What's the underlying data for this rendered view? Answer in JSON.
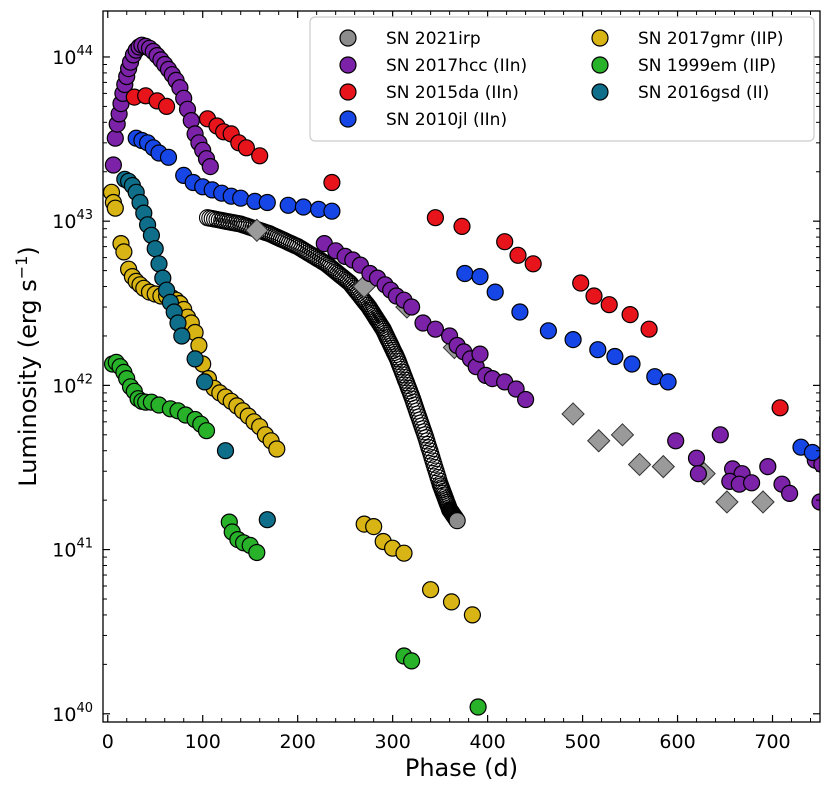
{
  "chart_data": {
    "type": "scatter",
    "xlabel": "Phase (d)",
    "ylabel": "Luminosity (erg s",
    "ylabel_sup": "−1",
    "ylabel_close": ")",
    "xlim": [
      -5,
      750
    ],
    "ylim_log10": [
      39.95,
      44.28
    ],
    "yscale": "log",
    "xticks": [
      0,
      100,
      200,
      300,
      400,
      500,
      600,
      700
    ],
    "xtick_labels": [
      "0",
      "100",
      "200",
      "300",
      "400",
      "500",
      "600",
      "700"
    ],
    "yticks_log10": [
      40,
      41,
      42,
      43,
      44
    ],
    "ytick_base": "10",
    "ytick_exponents": [
      "40",
      "41",
      "42",
      "43",
      "44"
    ],
    "legend_position": "top-right",
    "colors": {
      "irp": "#8c8c8c",
      "hcc": "#7b22a8",
      "da": "#e8141b",
      "jl": "#1646e6",
      "gmr": "#d8b414",
      "em": "#27b22a",
      "gsd": "#0f6e89",
      "diamond": "#9a9a9a"
    },
    "legend": [
      {
        "label": "SN 2021irp",
        "color_key": "irp"
      },
      {
        "label": "SN 2017hcc (IIn)",
        "color_key": "hcc"
      },
      {
        "label": "SN 2015da (IIn)",
        "color_key": "da"
      },
      {
        "label": "SN 2010jl (IIn)",
        "color_key": "jl"
      },
      {
        "label": "SN 2017gmr (IIP)",
        "color_key": "gmr"
      },
      {
        "label": "SN 1999em (IIP)",
        "color_key": "em"
      },
      {
        "label": "SN 2016gsd (II)",
        "color_key": "gsd"
      }
    ],
    "series": [
      {
        "key": "irp",
        "name": "SN 2021irp",
        "marker": "circle",
        "color_key": "irp",
        "curve": {
          "x": [
            105,
            140,
            170,
            200,
            230,
            255,
            275,
            290,
            305,
            320,
            335,
            350,
            360,
            368
          ],
          "y": [
            1.05e+43,
            9.6e+42,
            8.4e+42,
            7e+42,
            5.5e+42,
            4.2e+42,
            3e+42,
            2.2e+42,
            1.45e+42,
            8.6e+41,
            4.8e+41,
            2.5e+41,
            1.75e+41,
            1.5e+41
          ]
        }
      },
      {
        "key": "diamond",
        "name": "",
        "marker": "diamond",
        "color_key": "diamond",
        "points": [
          [
            157,
            8.8e+42
          ],
          [
            270,
            4e+42
          ],
          [
            315,
            3e+42
          ],
          [
            365,
            1.7e+42
          ],
          [
            490,
            6.7e+41
          ],
          [
            517,
            4.6e+41
          ],
          [
            542,
            5e+41
          ],
          [
            560,
            3.3e+41
          ],
          [
            585,
            3.2e+41
          ],
          [
            628,
            2.9e+41
          ],
          [
            652,
            1.95e+41
          ],
          [
            690,
            1.95e+41
          ]
        ]
      },
      {
        "key": "hcc",
        "name": "SN 2017hcc (IIn)",
        "marker": "circle",
        "color_key": "hcc",
        "points": [
          [
            6,
            2.2e+43
          ],
          [
            8,
            3.2e+43
          ],
          [
            10,
            3.9e+43
          ],
          [
            12,
            4.5e+43
          ],
          [
            14,
            5.2e+43
          ],
          [
            16,
            6e+43
          ],
          [
            18,
            6.8e+43
          ],
          [
            20,
            7.6e+43
          ],
          [
            22,
            8.5e+43
          ],
          [
            24,
            9.3e+43
          ],
          [
            27,
            1.03e+44
          ],
          [
            30,
            1.1e+44
          ],
          [
            33,
            1.15e+44
          ],
          [
            36,
            1.18e+44
          ],
          [
            40,
            1.16e+44
          ],
          [
            44,
            1.13e+44
          ],
          [
            48,
            1.08e+44
          ],
          [
            52,
            1.02e+44
          ],
          [
            56,
            9.6e+43
          ],
          [
            60,
            9e+43
          ],
          [
            64,
            8.4e+43
          ],
          [
            68,
            7.8e+43
          ],
          [
            72,
            7.2e+43
          ],
          [
            76,
            6.5e+43
          ],
          [
            80,
            5.6e+43
          ],
          [
            84,
            4.8e+43
          ],
          [
            88,
            4.1e+43
          ],
          [
            92,
            3.4e+43
          ],
          [
            96,
            3e+43
          ],
          [
            100,
            2.7e+43
          ],
          [
            104,
            2.4e+43
          ],
          [
            108,
            2.15e+43
          ],
          [
            228,
            7.3e+42
          ],
          [
            240,
            6.6e+42
          ],
          [
            250,
            6.1e+42
          ],
          [
            258,
            5.8e+42
          ],
          [
            266,
            5.4e+42
          ],
          [
            276,
            4.8e+42
          ],
          [
            284,
            4.5e+42
          ],
          [
            292,
            4.1e+42
          ],
          [
            298,
            3.8e+42
          ],
          [
            304,
            3.5e+42
          ],
          [
            312,
            3.3e+42
          ],
          [
            320,
            3e+42
          ],
          [
            332,
            2.4e+42
          ],
          [
            345,
            2.2e+42
          ],
          [
            360,
            2e+42
          ],
          [
            368,
            1.75e+42
          ],
          [
            375,
            1.6e+42
          ],
          [
            382,
            1.45e+42
          ],
          [
            388,
            1.3e+42
          ],
          [
            392,
            1.55e+42
          ],
          [
            398,
            1.15e+42
          ],
          [
            405,
            1.1e+42
          ],
          [
            418,
            1.05e+42
          ],
          [
            430,
            9.5e+41
          ],
          [
            440,
            8.2e+41
          ],
          [
            598,
            4.6e+41
          ],
          [
            620,
            3.6e+41
          ],
          [
            622,
            2.9e+41
          ],
          [
            645,
            5e+41
          ],
          [
            658,
            3.1e+41
          ],
          [
            668,
            2.9e+41
          ],
          [
            655,
            2.6e+41
          ],
          [
            665,
            2.5e+41
          ],
          [
            678,
            2.55e+41
          ],
          [
            695,
            3.2e+41
          ],
          [
            710,
            2.5e+41
          ],
          [
            718,
            2.2e+41
          ],
          [
            750,
            1.95e+41
          ],
          [
            745,
            3.5e+41
          ],
          [
            752,
            3.3e+41
          ]
        ]
      },
      {
        "key": "da",
        "name": "SN 2015da (IIn)",
        "marker": "circle",
        "color_key": "da",
        "points": [
          [
            28,
            5.7e+43
          ],
          [
            40,
            5.8e+43
          ],
          [
            52,
            5.4e+43
          ],
          [
            62,
            5e+43
          ],
          [
            105,
            4.2e+43
          ],
          [
            115,
            3.8e+43
          ],
          [
            122,
            3.5e+43
          ],
          [
            130,
            3.4e+43
          ],
          [
            138,
            3e+43
          ],
          [
            146,
            2.8e+43
          ],
          [
            160,
            2.5e+43
          ],
          [
            236,
            1.72e+43
          ],
          [
            345,
            1.05e+43
          ],
          [
            373,
            9.3e+42
          ],
          [
            418,
            7.5e+42
          ],
          [
            432,
            6.2e+42
          ],
          [
            448,
            5.5e+42
          ],
          [
            498,
            4.2e+42
          ],
          [
            512,
            3.5e+42
          ],
          [
            528,
            3.1e+42
          ],
          [
            550,
            2.7e+42
          ],
          [
            570,
            2.2e+42
          ],
          [
            708,
            7.3e+41
          ],
          [
            758,
            6.3e+41
          ]
        ]
      },
      {
        "key": "jl",
        "name": "SN 2010jl (IIn)",
        "marker": "circle",
        "color_key": "jl",
        "points": [
          [
            30,
            3.2e+43
          ],
          [
            36,
            3.1e+43
          ],
          [
            42,
            3e+43
          ],
          [
            48,
            2.8e+43
          ],
          [
            54,
            2.6e+43
          ],
          [
            64,
            2.45e+43
          ],
          [
            80,
            1.9e+43
          ],
          [
            90,
            1.72e+43
          ],
          [
            100,
            1.62e+43
          ],
          [
            110,
            1.55e+43
          ],
          [
            120,
            1.48e+43
          ],
          [
            130,
            1.42e+43
          ],
          [
            140,
            1.38e+43
          ],
          [
            155,
            1.32e+43
          ],
          [
            168,
            1.3e+43
          ],
          [
            190,
            1.25e+43
          ],
          [
            206,
            1.22e+43
          ],
          [
            222,
            1.18e+43
          ],
          [
            236,
            1.15e+43
          ],
          [
            376,
            4.8e+42
          ],
          [
            392,
            4.6e+42
          ],
          [
            408,
            3.7e+42
          ],
          [
            434,
            2.8e+42
          ],
          [
            464,
            2.15e+42
          ],
          [
            490,
            1.9e+42
          ],
          [
            516,
            1.65e+42
          ],
          [
            534,
            1.5e+42
          ],
          [
            552,
            1.35e+42
          ],
          [
            576,
            1.13e+42
          ],
          [
            590,
            1.05e+42
          ],
          [
            730,
            4.2e+41
          ],
          [
            742,
            3.9e+41
          ]
        ]
      },
      {
        "key": "gmr",
        "name": "SN 2017gmr (IIP)",
        "marker": "circle",
        "color_key": "gmr",
        "points": [
          [
            4,
            1.5e+43
          ],
          [
            6,
            1.3e+43
          ],
          [
            8,
            1.2e+43
          ],
          [
            14,
            7.3e+42
          ],
          [
            17,
            6.5e+42
          ],
          [
            22,
            5.1e+42
          ],
          [
            26,
            4.6e+42
          ],
          [
            30,
            4.3e+42
          ],
          [
            34,
            4.1e+42
          ],
          [
            38,
            3.9e+42
          ],
          [
            44,
            3.7e+42
          ],
          [
            50,
            3.6e+42
          ],
          [
            56,
            3.5e+42
          ],
          [
            62,
            3.5e+42
          ],
          [
            68,
            3.4e+42
          ],
          [
            72,
            3.3e+42
          ],
          [
            76,
            3.15e+42
          ],
          [
            80,
            2.9e+42
          ],
          [
            84,
            2.6e+42
          ],
          [
            88,
            2.4e+42
          ],
          [
            92,
            2.1e+42
          ],
          [
            96,
            1.75e+42
          ],
          [
            100,
            1.35e+42
          ],
          [
            106,
            1.1e+42
          ],
          [
            112,
            9.6e+41
          ],
          [
            118,
            9e+41
          ],
          [
            124,
            8.5e+41
          ],
          [
            130,
            8e+41
          ],
          [
            136,
            7.5e+41
          ],
          [
            142,
            7e+41
          ],
          [
            148,
            6.5e+41
          ],
          [
            154,
            6e+41
          ],
          [
            160,
            5.6e+41
          ],
          [
            166,
            5e+41
          ],
          [
            172,
            4.6e+41
          ],
          [
            178,
            4.1e+41
          ],
          [
            270,
            1.43e+41
          ],
          [
            280,
            1.38e+41
          ],
          [
            290,
            1.12e+41
          ],
          [
            300,
            1.02e+41
          ],
          [
            312,
            9.5e+40
          ],
          [
            340,
            5.7e+40
          ],
          [
            362,
            4.8e+40
          ],
          [
            384,
            4e+40
          ]
        ]
      },
      {
        "key": "em",
        "name": "SN 1999em (IIP)",
        "marker": "circle",
        "color_key": "em",
        "points": [
          [
            5,
            1.35e+42
          ],
          [
            9,
            1.38e+42
          ],
          [
            13,
            1.3e+42
          ],
          [
            17,
            1.2e+42
          ],
          [
            20,
            1.1e+42
          ],
          [
            24,
            9.8e+41
          ],
          [
            28,
            9.2e+41
          ],
          [
            32,
            8.3e+41
          ],
          [
            36,
            8e+41
          ],
          [
            40,
            7.9e+41
          ],
          [
            46,
            7.9e+41
          ],
          [
            54,
            7.6e+41
          ],
          [
            66,
            7.2e+41
          ],
          [
            74,
            7e+41
          ],
          [
            82,
            6.6e+41
          ],
          [
            92,
            6.2e+41
          ],
          [
            98,
            5.8e+41
          ],
          [
            104,
            5.3e+41
          ],
          [
            128,
            1.47e+41
          ],
          [
            131,
            1.28e+41
          ],
          [
            137,
            1.15e+41
          ],
          [
            143,
            1.1e+41
          ],
          [
            150,
            1.06e+41
          ],
          [
            157,
            9.6e+40
          ],
          [
            312,
            2.25e+40
          ],
          [
            320,
            2.1e+40
          ],
          [
            390,
            1.1e+40
          ]
        ]
      },
      {
        "key": "gsd",
        "name": "SN 2016gsd (II)",
        "marker": "circle",
        "color_key": "gsd",
        "points": [
          [
            18,
            1.8e+43
          ],
          [
            22,
            1.75e+43
          ],
          [
            26,
            1.65e+43
          ],
          [
            30,
            1.5e+43
          ],
          [
            34,
            1.3e+43
          ],
          [
            38,
            1.12e+43
          ],
          [
            42,
            9.5e+42
          ],
          [
            46,
            8.2e+42
          ],
          [
            50,
            6.8e+42
          ],
          [
            54,
            5.5e+42
          ],
          [
            58,
            4.5e+42
          ],
          [
            62,
            3.8e+42
          ],
          [
            66,
            3.2e+42
          ],
          [
            70,
            2.8e+42
          ],
          [
            74,
            2.4e+42
          ],
          [
            78,
            2e+42
          ],
          [
            92,
            1.45e+42
          ],
          [
            102,
            1.05e+42
          ],
          [
            124,
            4e+41
          ],
          [
            168,
            1.52e+41
          ]
        ]
      }
    ]
  }
}
